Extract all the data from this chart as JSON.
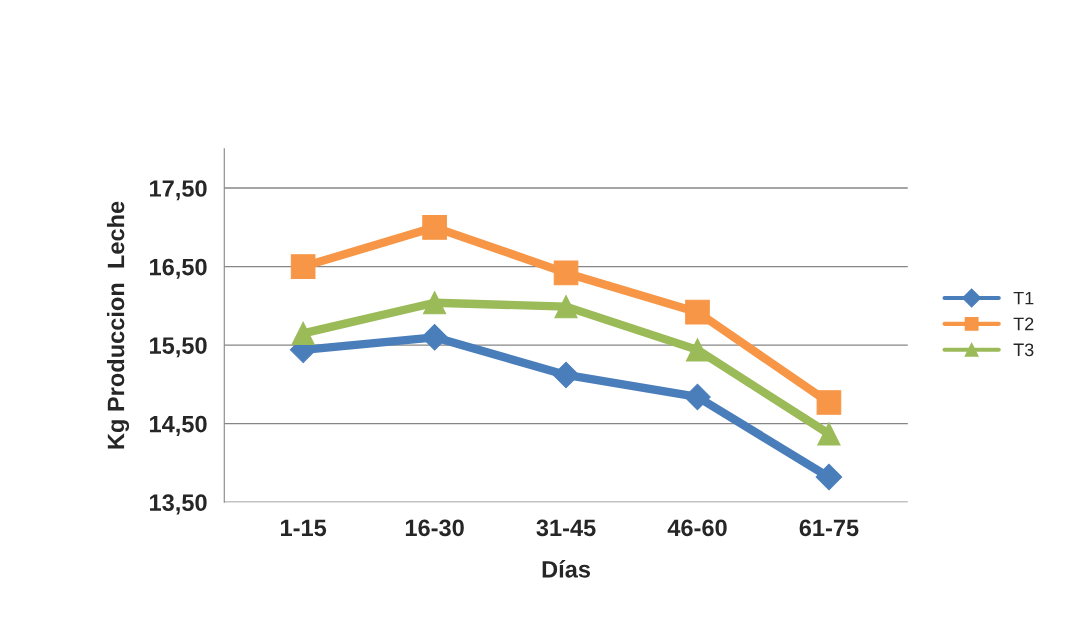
{
  "chart_data": {
    "type": "line",
    "xlabel": "Días",
    "ylabel": "Kg Produccion  Leche",
    "categories": [
      "1-15",
      "16-30",
      "31-45",
      "46-60",
      "61-75"
    ],
    "series": [
      {
        "name": "T1",
        "color": "#4a7ebb",
        "marker": "diamond",
        "values": [
          15.44,
          15.6,
          15.12,
          14.84,
          13.82
        ]
      },
      {
        "name": "T2",
        "color": "#f79646",
        "marker": "square",
        "values": [
          16.5,
          17.0,
          16.42,
          15.92,
          14.77
        ]
      },
      {
        "name": "T3",
        "color": "#9bbb59",
        "marker": "triangle",
        "values": [
          15.65,
          16.04,
          15.99,
          15.44,
          14.37
        ]
      }
    ],
    "ylim": [
      13.5,
      18.0
    ],
    "yticks": [
      {
        "value": 13.5,
        "label": "13,50"
      },
      {
        "value": 14.5,
        "label": "14,50"
      },
      {
        "value": 15.5,
        "label": "15,50"
      },
      {
        "value": 16.5,
        "label": "16,50"
      },
      {
        "value": 17.5,
        "label": "17,50"
      }
    ],
    "grid": "y",
    "legend": "right",
    "line_style": "solid"
  }
}
